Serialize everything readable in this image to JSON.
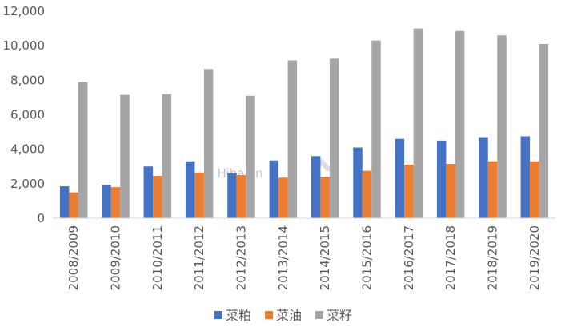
{
  "chart_data": {
    "type": "bar",
    "categories": [
      "2008/2009",
      "2009/2010",
      "2010/2011",
      "2011/2012",
      "2012/2013",
      "2013/2014",
      "2014/2015",
      "2015/2016",
      "2016/2017",
      "2017/2018",
      "2018/2019",
      "2019/2020"
    ],
    "series": [
      {
        "name": "菜粕",
        "color": "#4472C4",
        "values": [
          1850,
          1950,
          3000,
          3300,
          2600,
          3350,
          3600,
          4100,
          4600,
          4500,
          4700,
          4750
        ]
      },
      {
        "name": "菜油",
        "color": "#ED7D31",
        "values": [
          1500,
          1800,
          2450,
          2650,
          2500,
          2350,
          2400,
          2750,
          3100,
          3150,
          3300,
          3300
        ]
      },
      {
        "name": "菜籽",
        "color": "#A5A5A5",
        "values": [
          7900,
          7150,
          7200,
          8650,
          7100,
          9150,
          9250,
          10300,
          11000,
          10850,
          10600,
          10100
        ]
      }
    ],
    "yticks": [
      "0",
      "2,000",
      "4,000",
      "6,000",
      "8,000",
      "10,000",
      "12,000"
    ],
    "ylim": [
      0,
      12000
    ],
    "grid": false,
    "legend_position": "bottom-center",
    "title": "",
    "xlabel": "",
    "ylabel": ""
  },
  "watermark": "Hibaian"
}
